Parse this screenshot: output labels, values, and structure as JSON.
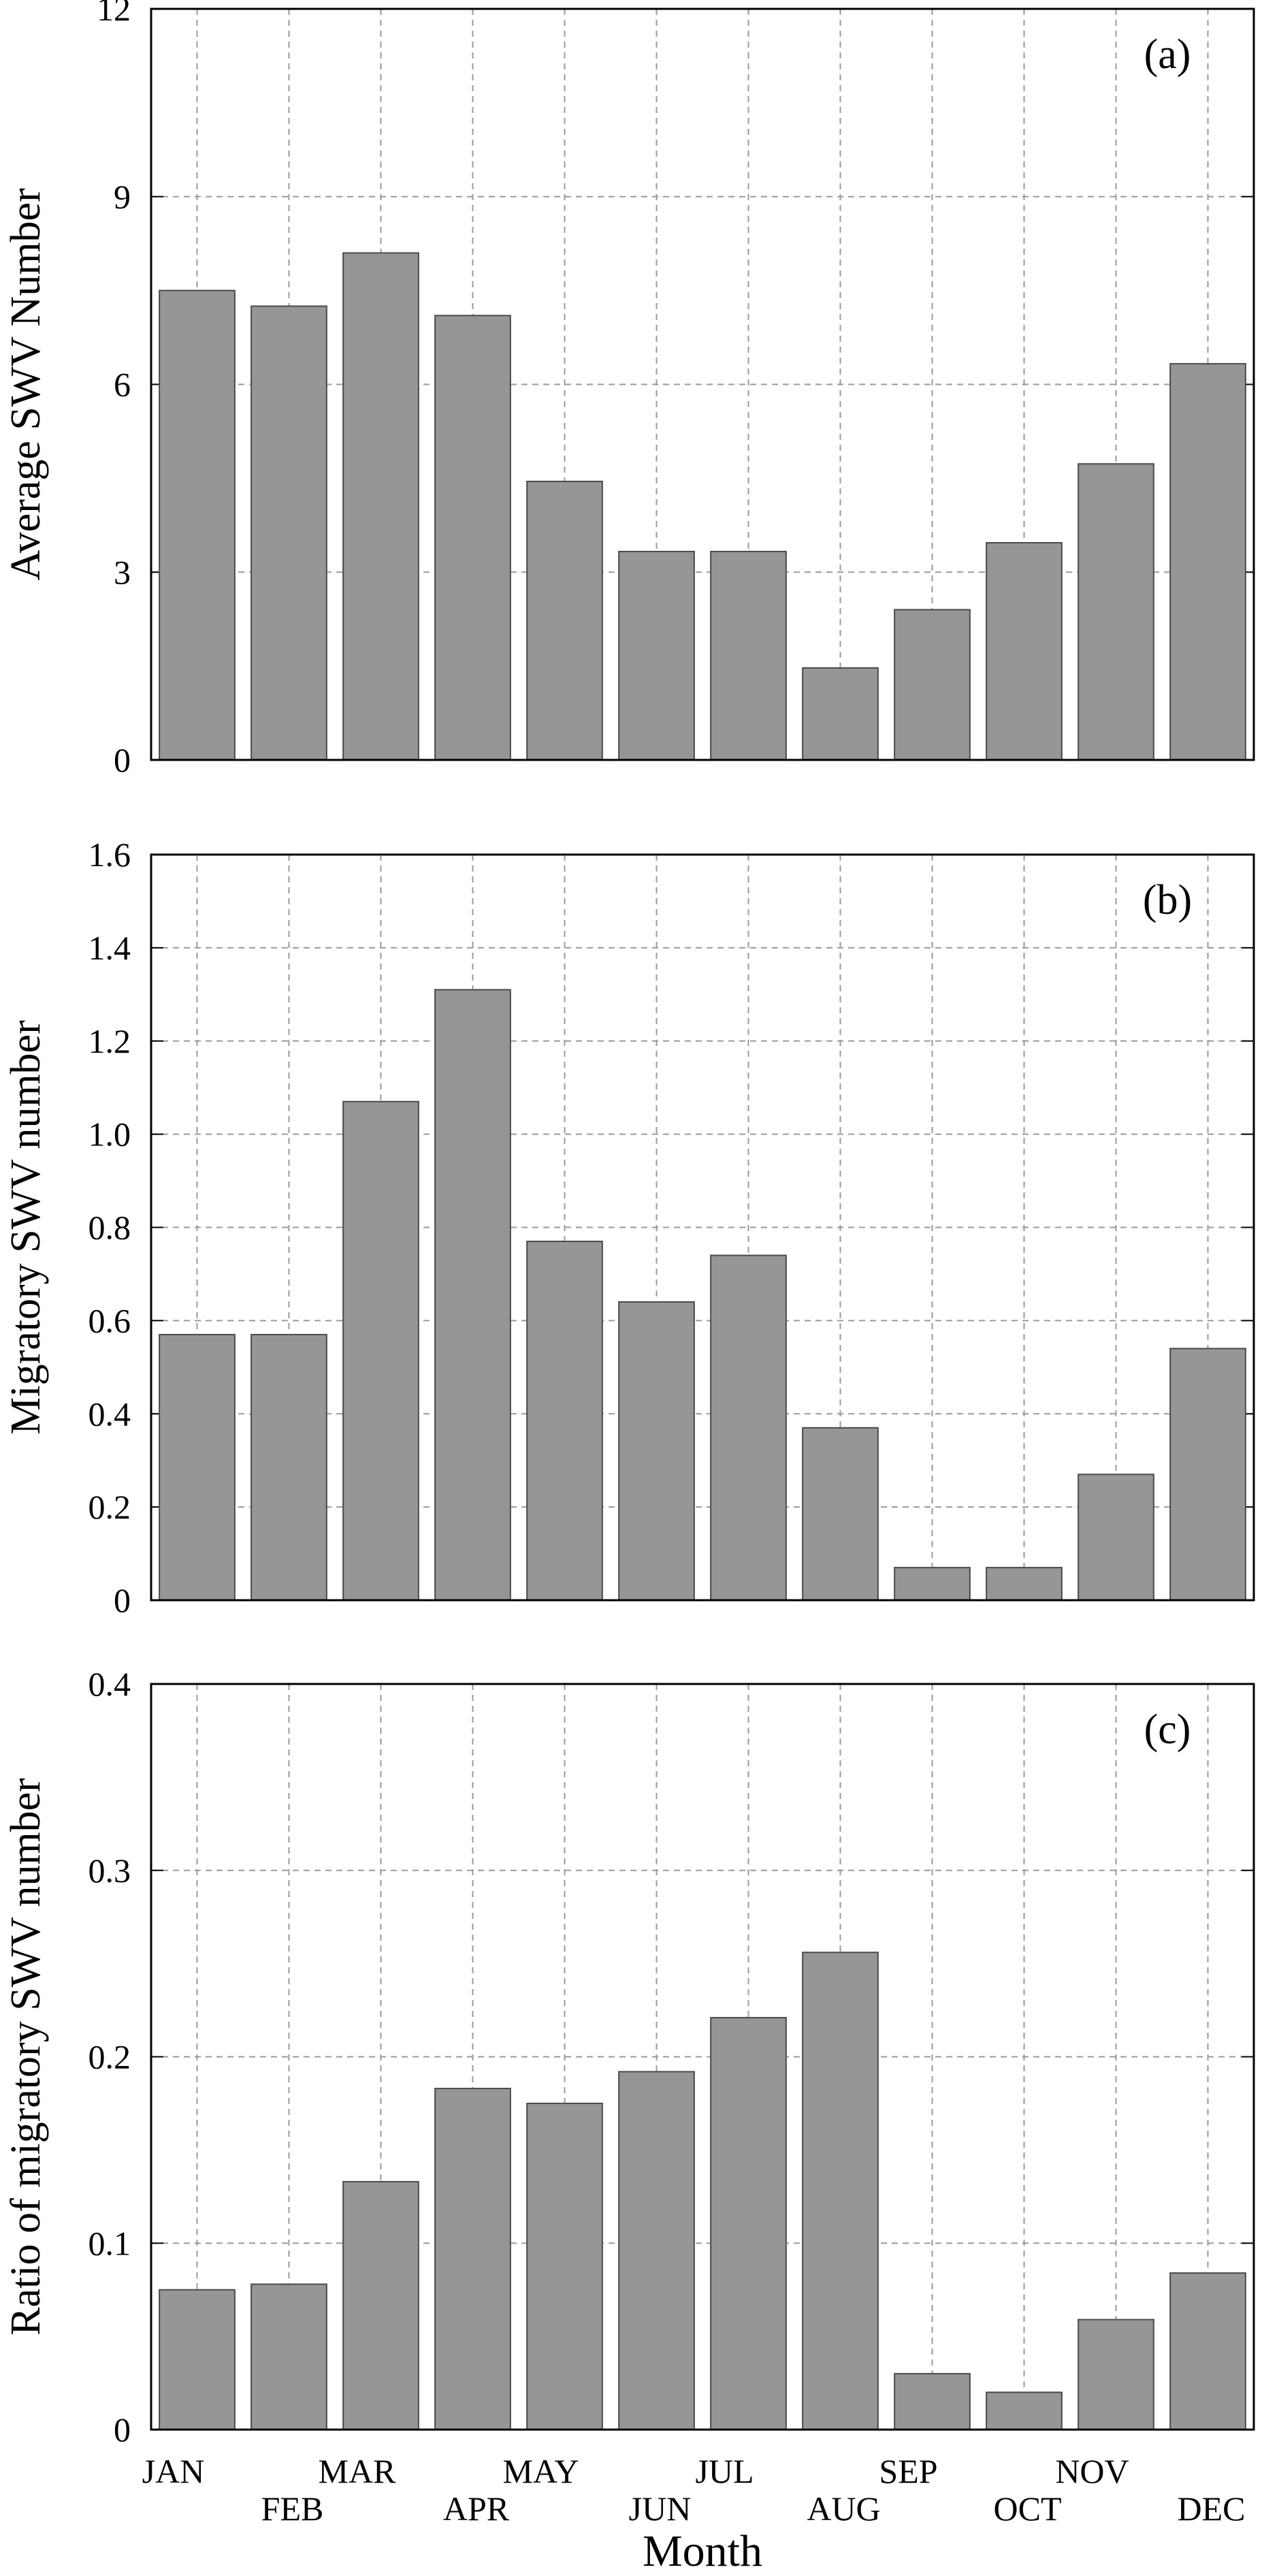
{
  "chart_data": [
    {
      "type": "bar",
      "panel_label": "(a)",
      "ylabel": "Average SWV Number",
      "categories": [
        "JAN",
        "FEB",
        "MAR",
        "APR",
        "MAY",
        "JUN",
        "JUL",
        "AUG",
        "SEP",
        "OCT",
        "NOV",
        "DEC"
      ],
      "values": [
        7.5,
        7.25,
        8.1,
        7.1,
        4.45,
        3.33,
        3.33,
        1.47,
        2.4,
        3.47,
        4.73,
        6.33
      ],
      "ylim": [
        0,
        12
      ],
      "yticks": [
        "0",
        "3",
        "6",
        "9",
        "12"
      ],
      "grid": true,
      "bar_color": "#969696"
    },
    {
      "type": "bar",
      "panel_label": "(b)",
      "ylabel": "Migratory SWV number",
      "categories": [
        "JAN",
        "FEB",
        "MAR",
        "APR",
        "MAY",
        "JUN",
        "JUL",
        "AUG",
        "SEP",
        "OCT",
        "NOV",
        "DEC"
      ],
      "values": [
        0.57,
        0.57,
        1.07,
        1.31,
        0.77,
        0.64,
        0.74,
        0.37,
        0.07,
        0.07,
        0.27,
        0.54
      ],
      "ylim": [
        0,
        1.6
      ],
      "yticks": [
        "0",
        "0.2",
        "0.4",
        "0.6",
        "0.8",
        "1.0",
        "1.2",
        "1.4",
        "1.6"
      ],
      "grid": true,
      "bar_color": "#969696"
    },
    {
      "type": "bar",
      "panel_label": "(c)",
      "ylabel": "Ratio of migratory SWV number",
      "xlabel": "Month",
      "categories": [
        "JAN",
        "FEB",
        "MAR",
        "APR",
        "MAY",
        "JUN",
        "JUL",
        "AUG",
        "SEP",
        "OCT",
        "NOV",
        "DEC"
      ],
      "values": [
        0.075,
        0.078,
        0.133,
        0.183,
        0.175,
        0.192,
        0.221,
        0.256,
        0.03,
        0.02,
        0.059,
        0.084
      ],
      "ylim": [
        0,
        0.4
      ],
      "yticks": [
        "0",
        "0.1",
        "0.2",
        "0.3",
        "0.4"
      ],
      "grid": true,
      "bar_color": "#969696"
    }
  ]
}
